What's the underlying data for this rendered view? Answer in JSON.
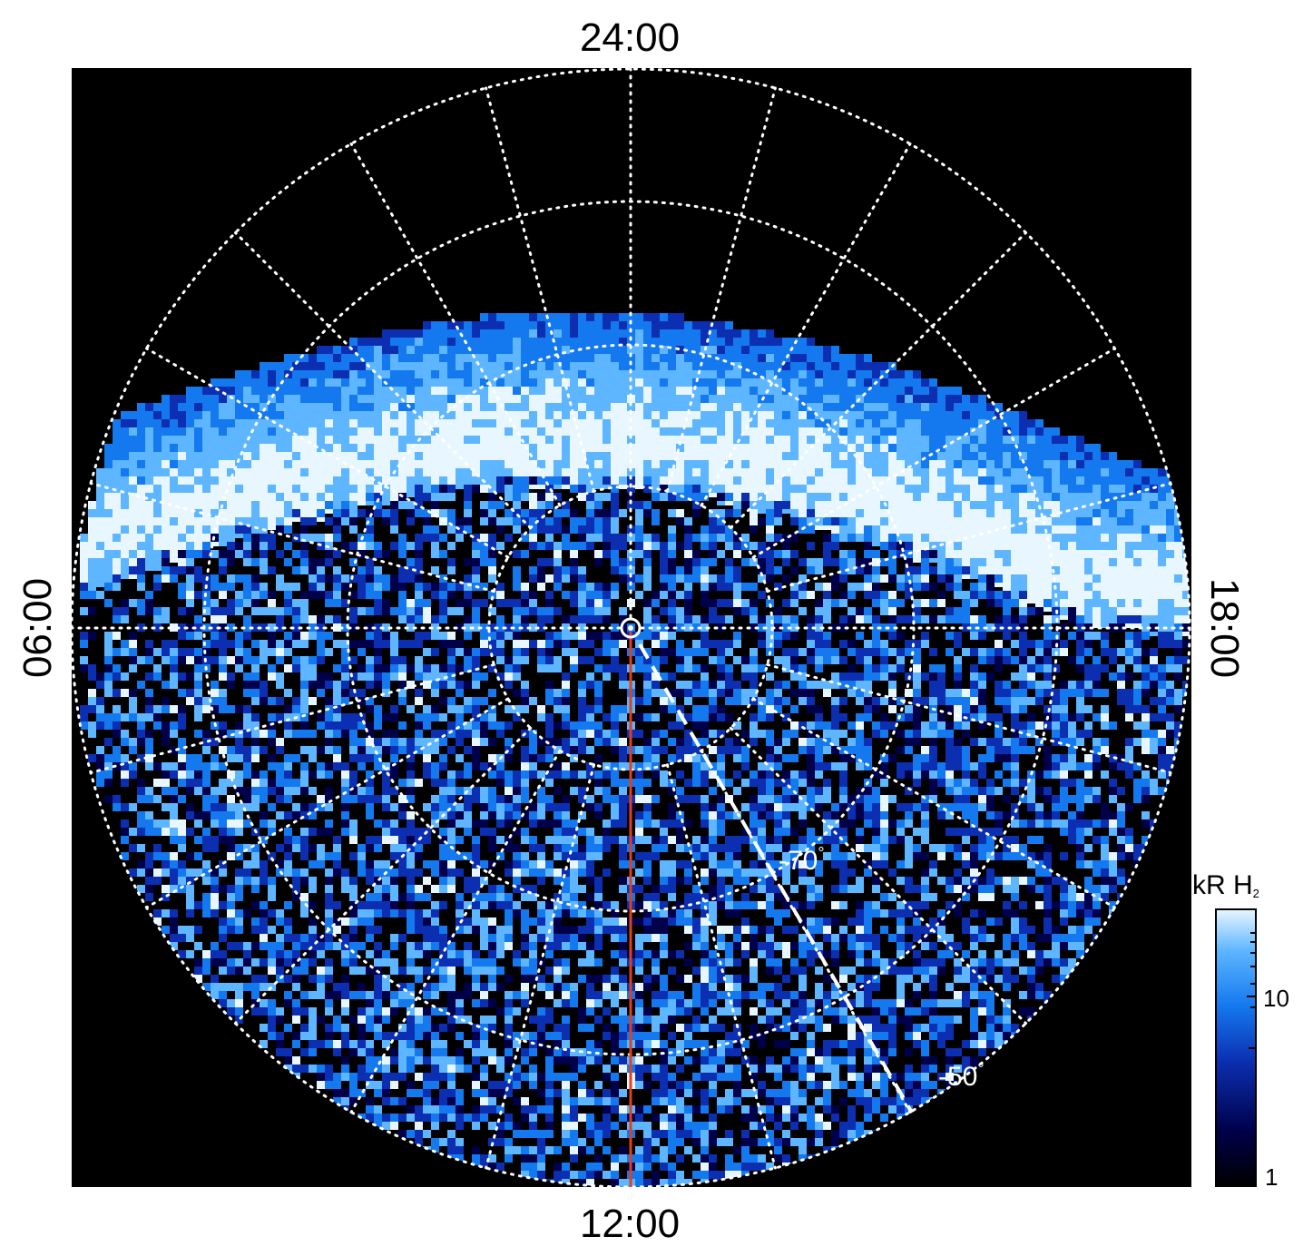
{
  "figure": {
    "local_time_labels": {
      "top": "24:00",
      "bottom": "12:00",
      "left": "06:00",
      "right": "18:00"
    },
    "latitude_labels": {
      "inner": "-70",
      "outer": "-50",
      "degree_symbol": "°"
    },
    "colorbar": {
      "title_main": "kR H",
      "title_subscript": "2",
      "tick_high": "10",
      "tick_low": "1",
      "scale": "log",
      "colors": [
        "#000000",
        "#00004a",
        "#0b2fb0",
        "#1478ee",
        "#5db6ff",
        "#e8f6ff"
      ]
    },
    "colors": {
      "background_outside_map": "#000000",
      "page": "#ffffff",
      "grid": "#ffffff",
      "meridian_12": "#e0401c",
      "emission_low": "#00004a",
      "emission_mid": "#1478ee",
      "emission_high": "#e8f6ff"
    }
  }
}
